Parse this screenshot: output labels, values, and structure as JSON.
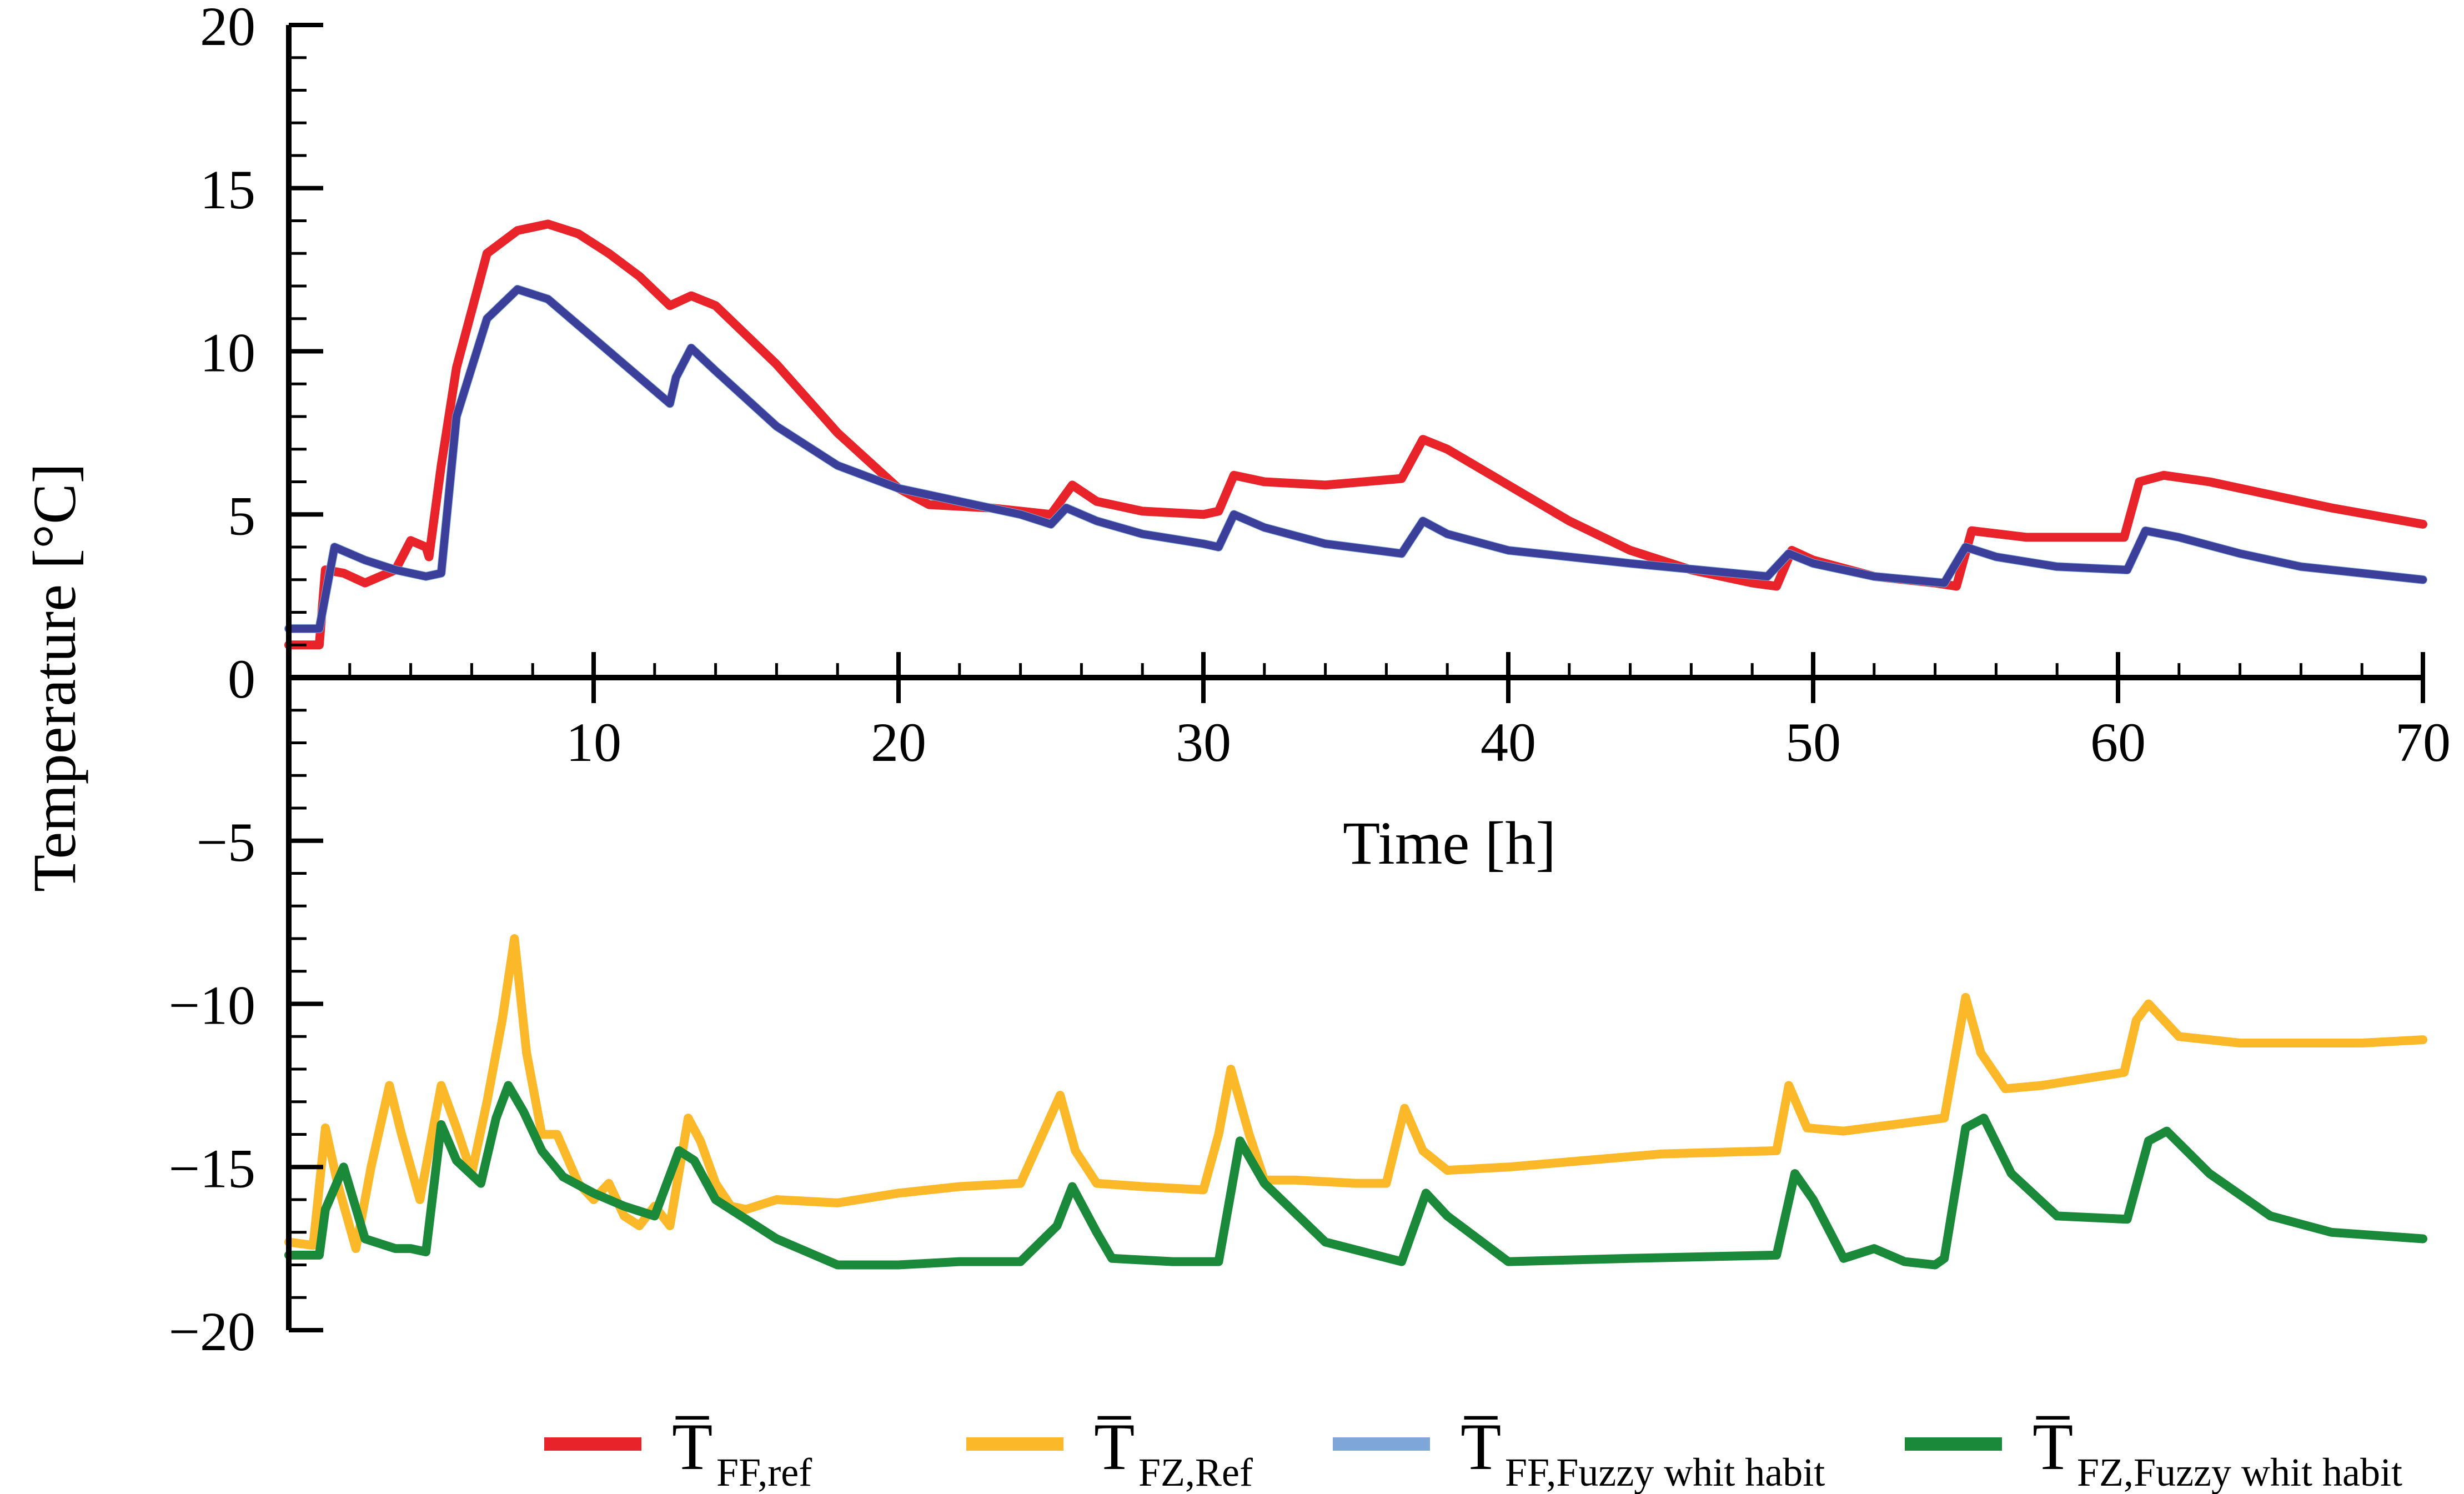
{
  "chart_data": {
    "type": "line",
    "title": "",
    "xlabel": "Time [h]",
    "ylabel": "Temperature [°C]",
    "xlim": [
      0,
      70
    ],
    "ylim": [
      -20,
      20
    ],
    "x_ticks": [
      10,
      20,
      30,
      40,
      50,
      60,
      70
    ],
    "x_tick_labels": [
      "10",
      "20",
      "30",
      "40",
      "50",
      "60",
      "70"
    ],
    "y_ticks": [
      20,
      15,
      10,
      5,
      0,
      -5,
      -10,
      -15,
      -20
    ],
    "y_tick_labels": [
      "20",
      "15",
      "10",
      "5",
      "0",
      "−5",
      "−10",
      "−15",
      "−20"
    ],
    "grid": false,
    "legend_position": "bottom",
    "series": [
      {
        "name": "T̅FF,ref",
        "legend_main": "T̅",
        "legend_sub": "FF,ref",
        "color": "#e8242a",
        "x": [
          0,
          1,
          1.2,
          1.8,
          2.5,
          3.5,
          4,
          4.5,
          4.6,
          5,
          5.5,
          6.5,
          7.5,
          8.5,
          9.5,
          10.5,
          11.5,
          12.5,
          13.2,
          14,
          16,
          18,
          20,
          21,
          23,
          25,
          25.7,
          26.5,
          28,
          30,
          30.5,
          31,
          32,
          34,
          36.5,
          37.2,
          38,
          40,
          42,
          44,
          46,
          48,
          48.8,
          49.3,
          50,
          52,
          54,
          54.7,
          55.2,
          57,
          59,
          60.2,
          60.7,
          61.5,
          63,
          65,
          67,
          70
        ],
        "y": [
          1,
          1,
          3.3,
          3.2,
          2.9,
          3.3,
          4.2,
          4.0,
          3.7,
          6.5,
          9.5,
          13.0,
          13.7,
          13.9,
          13.6,
          13.0,
          12.3,
          11.4,
          11.7,
          11.4,
          9.6,
          7.5,
          5.8,
          5.3,
          5.2,
          5.0,
          5.9,
          5.4,
          5.1,
          5.0,
          5.1,
          6.2,
          6.0,
          5.9,
          6.1,
          7.3,
          7.0,
          5.9,
          4.8,
          3.9,
          3.3,
          2.9,
          2.8,
          3.9,
          3.6,
          3.1,
          2.9,
          2.8,
          4.5,
          4.3,
          4.3,
          4.3,
          6.0,
          6.2,
          6.0,
          5.6,
          5.2,
          4.7
        ]
      },
      {
        "name": "T̅FZ,Ref",
        "legend_main": "T̅",
        "legend_sub": "FZ,Ref",
        "color": "#fbb92a",
        "x": [
          0,
          0.8,
          1.2,
          1.6,
          2.2,
          2.7,
          3.3,
          3.7,
          4.3,
          5.0,
          5.5,
          6.0,
          6.5,
          7.0,
          7.4,
          7.8,
          8.3,
          8.8,
          9.5,
          10.0,
          10.5,
          11.0,
          11.5,
          12.0,
          12.5,
          13.1,
          13.5,
          14.0,
          14.5,
          15.0,
          16,
          18,
          20,
          22,
          24,
          25.3,
          25.8,
          26.5,
          28,
          30,
          30.5,
          30.9,
          31.5,
          32,
          33,
          35,
          36,
          36.6,
          37.2,
          38,
          40,
          45,
          48.8,
          49.2,
          49.8,
          51,
          54.3,
          55,
          55.5,
          56.3,
          57.5,
          60.2,
          60.6,
          61,
          62,
          64,
          66,
          68,
          70
        ],
        "y": [
          -17.3,
          -17.4,
          -13.8,
          -15.5,
          -17.5,
          -15.0,
          -12.5,
          -14.0,
          -16.0,
          -12.5,
          -13.8,
          -15.2,
          -13.0,
          -10.5,
          -8.0,
          -11.5,
          -14.0,
          -14.0,
          -15.5,
          -16.0,
          -15.5,
          -16.5,
          -16.8,
          -16.2,
          -16.8,
          -13.5,
          -14.2,
          -15.5,
          -16.2,
          -16.3,
          -16.0,
          -16.1,
          -15.8,
          -15.6,
          -15.5,
          -12.8,
          -14.5,
          -15.5,
          -15.6,
          -15.7,
          -14.0,
          -12.0,
          -14.0,
          -15.4,
          -15.4,
          -15.5,
          -15.5,
          -13.2,
          -14.5,
          -15.1,
          -15.0,
          -14.6,
          -14.5,
          -12.5,
          -13.8,
          -13.9,
          -13.5,
          -9.8,
          -11.5,
          -12.6,
          -12.5,
          -12.1,
          -10.5,
          -10.0,
          -11.0,
          -11.2,
          -11.2,
          -11.2,
          -11.1
        ]
      },
      {
        "name": "T̅FF,Fuzzy whit habit",
        "legend_main": "T̅",
        "legend_sub": "FF,Fuzzy whit habit",
        "color": "#7ea6d8",
        "x": [
          0,
          1,
          1.5,
          2.5,
          3.5,
          4.5,
          5,
          5.5,
          6.5,
          7.5,
          8.5,
          9.5,
          10.5,
          11.5,
          12.5,
          12.7,
          13.2,
          14,
          16,
          18,
          20,
          22,
          24,
          25,
          25.5,
          26.5,
          28,
          30,
          30.5,
          31,
          32,
          34,
          36.5,
          37.2,
          38,
          40,
          44,
          48.5,
          49.2,
          50,
          52,
          54.3,
          55,
          56,
          58,
          60.3,
          60.9,
          62,
          64,
          66,
          68,
          70
        ],
        "y": [
          1.5,
          1.5,
          4.0,
          3.6,
          3.3,
          3.1,
          3.2,
          8.0,
          11.0,
          11.9,
          11.6,
          10.8,
          10.0,
          9.2,
          8.4,
          9.2,
          10.1,
          9.4,
          7.7,
          6.5,
          5.8,
          5.4,
          5.0,
          4.7,
          5.2,
          4.8,
          4.4,
          4.1,
          4.0,
          5.0,
          4.6,
          4.1,
          3.8,
          4.8,
          4.4,
          3.9,
          3.5,
          3.1,
          3.8,
          3.5,
          3.1,
          2.9,
          4.0,
          3.7,
          3.4,
          3.3,
          4.5,
          4.3,
          3.8,
          3.4,
          3.2,
          3.0
        ]
      },
      {
        "name": "T̅FZ,Fuzzy whit habit",
        "legend_main": "T̅",
        "legend_sub": "FZ,Fuzzy whit habit",
        "color": "#1a8a3a",
        "x": [
          0,
          1,
          1.2,
          1.8,
          2.5,
          3.5,
          4.0,
          4.5,
          5.0,
          5.5,
          6.3,
          6.8,
          7.2,
          7.7,
          8.3,
          9.0,
          10,
          11,
          12,
          12.8,
          13.3,
          14,
          16,
          18,
          20,
          22,
          24,
          25.2,
          25.7,
          26.5,
          27,
          29,
          30.5,
          31.2,
          32,
          34,
          36.5,
          37.3,
          38,
          40,
          44,
          48.8,
          49.4,
          50,
          51,
          52,
          53,
          54,
          54.3,
          55.0,
          55.6,
          56.5,
          58,
          60.3,
          61.0,
          61.6,
          63,
          65,
          67,
          70
        ],
        "y": [
          -17.7,
          -17.7,
          -16.3,
          -15.0,
          -17.2,
          -17.5,
          -17.5,
          -17.6,
          -13.7,
          -14.8,
          -15.5,
          -13.5,
          -12.5,
          -13.3,
          -14.5,
          -15.3,
          -15.8,
          -16.2,
          -16.5,
          -14.5,
          -14.8,
          -16.0,
          -17.2,
          -18.0,
          -18.0,
          -17.9,
          -17.9,
          -16.8,
          -15.6,
          -17.0,
          -17.8,
          -17.9,
          -17.9,
          -14.2,
          -15.5,
          -17.3,
          -17.9,
          -15.8,
          -16.5,
          -17.9,
          -17.8,
          -17.7,
          -15.2,
          -16.0,
          -17.8,
          -17.5,
          -17.9,
          -18.0,
          -17.8,
          -13.8,
          -13.5,
          -15.2,
          -16.5,
          -16.6,
          -14.2,
          -13.9,
          -15.2,
          -16.5,
          -17.0,
          -17.2
        ]
      }
    ]
  }
}
